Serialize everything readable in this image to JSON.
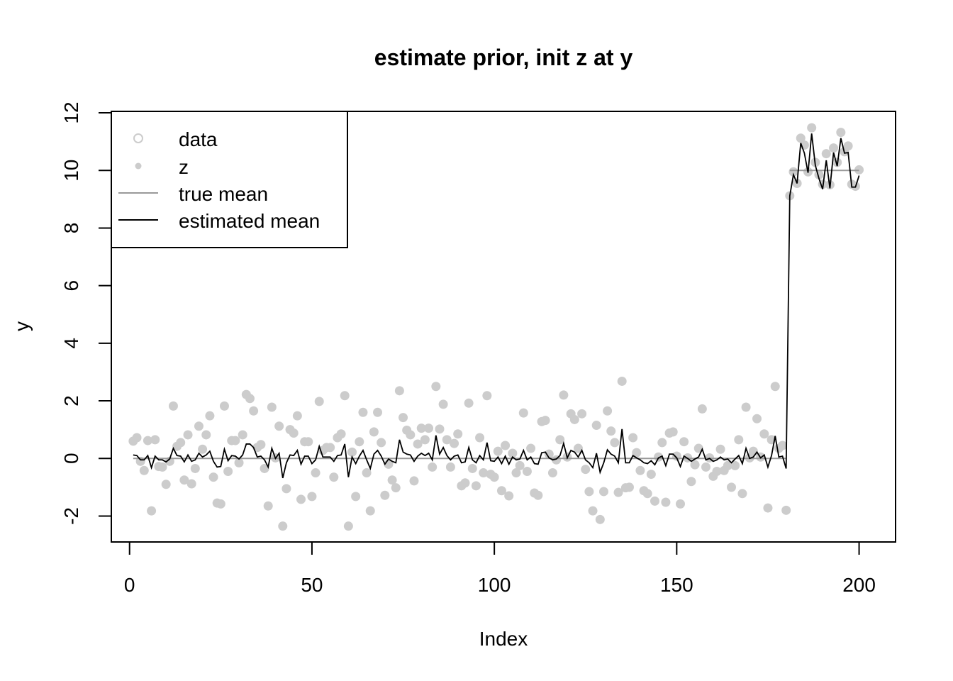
{
  "chart_data": {
    "type": "scatter",
    "title": "estimate prior, init z at y",
    "xlabel": "Index",
    "ylabel": "y",
    "xlim": [
      -5,
      210
    ],
    "ylim": [
      -2.9,
      12.05
    ],
    "x_ticks": [
      0,
      50,
      100,
      150,
      200
    ],
    "y_ticks": [
      -2,
      0,
      2,
      4,
      6,
      8,
      10,
      12
    ],
    "grid": false,
    "legend_position": "top-left",
    "colors": {
      "data": "#cccccc",
      "z": "#cccccc",
      "true_mean": "#999999",
      "estimated_mean": "#000000"
    },
    "legend": [
      {
        "label": "data",
        "kind": "open-circle",
        "color": "#cccccc"
      },
      {
        "label": "z",
        "kind": "filled-circle",
        "color": "#cccccc"
      },
      {
        "label": "true mean",
        "kind": "line",
        "color": "#999999"
      },
      {
        "label": "estimated mean",
        "kind": "line",
        "color": "#000000"
      }
    ],
    "true_mean": [
      {
        "x": [
          1,
          180
        ],
        "y": [
          0,
          0
        ]
      },
      {
        "x": [
          181,
          200
        ],
        "y": [
          10,
          10
        ]
      }
    ],
    "z_values": [
      0.6,
      0.72,
      -0.1,
      -0.42,
      0.62,
      -1.82,
      0.65,
      -0.28,
      -0.3,
      -0.9,
      -0.1,
      1.82,
      0.42,
      0.55,
      -0.75,
      0.82,
      -0.88,
      -0.35,
      1.12,
      0.32,
      0.82,
      1.48,
      -0.65,
      -1.55,
      -1.58,
      1.82,
      -0.45,
      0.62,
      0.62,
      -0.15,
      0.82,
      2.22,
      2.08,
      1.65,
      0.38,
      0.48,
      -0.35,
      -1.65,
      1.78,
      0.02,
      1.12,
      -2.35,
      -1.05,
      1.0,
      0.88,
      1.48,
      -1.42,
      0.58,
      0.58,
      -1.32,
      -0.5,
      1.98,
      0.28,
      0.38,
      0.38,
      -0.65,
      0.72,
      0.85,
      2.18,
      -2.35,
      0.22,
      -1.32,
      0.58,
      1.6,
      -0.5,
      -1.82,
      0.92,
      1.6,
      0.55,
      -1.28,
      -0.2,
      -0.75,
      -1.02,
      2.35,
      1.42,
      0.98,
      0.82,
      -0.78,
      0.5,
      1.05,
      0.65,
      1.05,
      -0.3,
      2.5,
      1.02,
      1.88,
      0.65,
      -0.3,
      0.52,
      0.85,
      -0.95,
      -0.85,
      1.92,
      -0.35,
      -0.95,
      0.72,
      -0.5,
      2.18,
      -0.55,
      -0.65,
      0.25,
      -1.12,
      0.45,
      -1.3,
      0.18,
      -0.5,
      -0.25,
      1.58,
      -0.45,
      0.35,
      -1.2,
      -1.28,
      1.28,
      1.32,
      0.15,
      -0.5,
      -0.05,
      0.65,
      2.2,
      0.05,
      1.55,
      1.35,
      0.35,
      1.55,
      -0.38,
      -1.15,
      -1.82,
      1.15,
      -2.12,
      -1.15,
      1.65,
      0.95,
      0.55,
      -1.18,
      2.68,
      -1.02,
      -1.0,
      0.72,
      0.2,
      -0.42,
      -1.12,
      -1.22,
      -0.55,
      -1.48,
      0.05,
      0.55,
      -1.52,
      0.88,
      0.92,
      0.08,
      -1.58,
      0.58,
      0.02,
      -0.8,
      -0.22,
      0.35,
      1.72,
      -0.3,
      0.02,
      -0.62,
      -0.45,
      0.32,
      -0.42,
      -0.25,
      -1.0,
      -0.25,
      0.65,
      -1.22,
      1.78,
      0.02,
      0.25,
      1.38,
      0.05,
      0.85,
      -1.72,
      0.65,
      2.5,
      0.35,
      0.45,
      -1.8,
      9.12,
      9.95,
      9.55,
      11.12,
      10.88,
      9.95,
      11.48,
      10.28,
      9.85,
      9.52,
      10.58,
      9.5,
      10.78,
      10.28,
      11.32,
      10.65,
      10.85,
      9.52,
      9.45,
      10.02
    ],
    "estimated_mean": [
      0.12,
      0.1,
      -0.05,
      -0.05,
      0.1,
      -0.32,
      0.08,
      -0.05,
      -0.05,
      -0.12,
      -0.02,
      0.35,
      0.1,
      0.08,
      -0.12,
      0.12,
      -0.1,
      -0.05,
      0.18,
      0.05,
      0.12,
      0.25,
      -0.1,
      -0.3,
      -0.28,
      0.32,
      -0.08,
      0.1,
      0.08,
      -0.02,
      0.12,
      0.5,
      0.5,
      0.38,
      0.05,
      0.08,
      -0.05,
      -0.3,
      0.35,
      0.0,
      0.18,
      -0.68,
      -0.15,
      0.12,
      0.1,
      0.28,
      -0.2,
      0.08,
      0.08,
      -0.18,
      -0.05,
      0.42,
      0.05,
      0.05,
      0.05,
      -0.1,
      0.1,
      0.12,
      0.5,
      -0.65,
      0.05,
      -0.18,
      0.08,
      0.28,
      -0.05,
      -0.35,
      0.15,
      0.28,
      0.08,
      -0.2,
      -0.02,
      -0.1,
      -0.15,
      0.65,
      0.22,
      0.15,
      0.12,
      -0.1,
      0.08,
      0.18,
      0.1,
      0.18,
      -0.05,
      0.8,
      0.15,
      0.38,
      0.1,
      -0.05,
      0.08,
      0.12,
      -0.15,
      -0.12,
      0.38,
      -0.05,
      -0.15,
      0.1,
      -0.05,
      0.55,
      -0.08,
      -0.1,
      0.05,
      -0.18,
      0.08,
      -0.2,
      0.05,
      -0.05,
      -0.02,
      0.28,
      -0.05,
      0.05,
      -0.18,
      -0.2,
      0.2,
      0.22,
      0.02,
      -0.05,
      -0.02,
      0.1,
      0.52,
      0.02,
      0.28,
      0.22,
      0.05,
      0.28,
      -0.05,
      -0.15,
      -0.32,
      0.18,
      -0.48,
      -0.15,
      0.3,
      0.15,
      0.08,
      -0.15,
      1.02,
      -0.15,
      -0.15,
      0.1,
      0.02,
      -0.05,
      -0.15,
      -0.18,
      -0.08,
      -0.22,
      0.02,
      0.08,
      -0.25,
      0.15,
      0.15,
      0.02,
      -0.28,
      0.08,
      0.0,
      -0.1,
      -0.02,
      0.05,
      0.32,
      -0.05,
      0.0,
      -0.1,
      -0.05,
      0.05,
      -0.05,
      -0.02,
      -0.15,
      -0.02,
      0.1,
      -0.18,
      0.35,
      0.0,
      0.05,
      0.22,
      0.02,
      0.12,
      -0.3,
      0.1,
      0.78,
      0.05,
      0.08,
      -0.35,
      9.12,
      9.85,
      9.55,
      10.95,
      10.6,
      9.92,
      11.28,
      10.18,
      9.72,
      9.35,
      10.35,
      9.38,
      10.62,
      10.15,
      11.12,
      10.6,
      10.62,
      9.42,
      9.42,
      9.82
    ]
  }
}
